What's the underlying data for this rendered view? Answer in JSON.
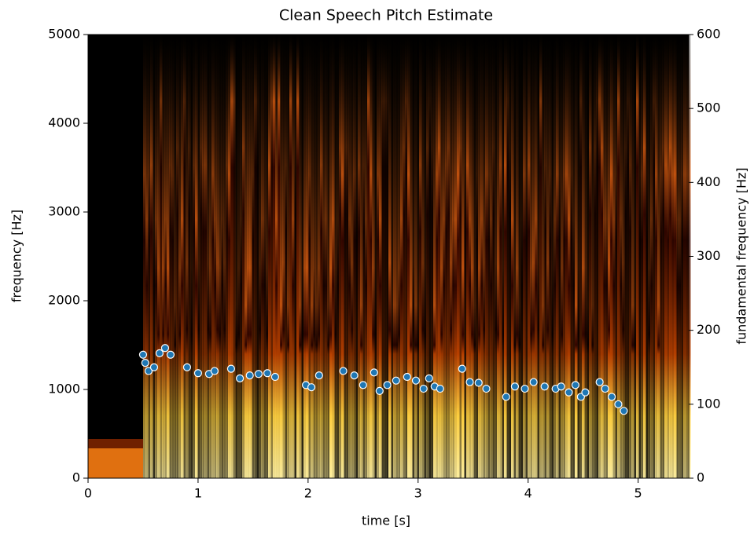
{
  "chart_data": {
    "type": "scatter",
    "title": "Clean Speech Pitch Estimate",
    "xlabel": "time [s]",
    "ylabel": "frequency [Hz]",
    "y2label": "fundamental frequency [Hz]",
    "xlim": [
      0,
      5.46
    ],
    "xticks": [
      0,
      1,
      2,
      3,
      4,
      5
    ],
    "ylim": [
      0,
      5000
    ],
    "yticks": [
      0,
      1000,
      2000,
      3000,
      4000,
      5000
    ],
    "y2lim": [
      0,
      600
    ],
    "y2ticks": [
      0,
      100,
      200,
      300,
      400,
      500,
      600
    ],
    "series": [
      {
        "color": "#1f77b4",
        "axis": "y2",
        "x": [
          0.5,
          0.52,
          0.55,
          0.6,
          0.65,
          0.7,
          0.75,
          0.9,
          1.0,
          1.1,
          1.15,
          1.3,
          1.38,
          1.47,
          1.55,
          1.63,
          1.7,
          1.98,
          2.03,
          2.1,
          2.32,
          2.42,
          2.5,
          2.6,
          2.65,
          2.72,
          2.8,
          2.9,
          2.98,
          3.05,
          3.1,
          3.15,
          3.2,
          3.4,
          3.47,
          3.55,
          3.62,
          3.8,
          3.88,
          3.97,
          4.05,
          4.15,
          4.25,
          4.3,
          4.37,
          4.43,
          4.48,
          4.52,
          4.65,
          4.7,
          4.76,
          4.82,
          4.87
        ],
        "values": [
          167,
          156,
          145,
          150,
          169,
          176,
          167,
          150,
          142,
          141,
          145,
          148,
          135,
          139,
          141,
          142,
          137,
          126,
          123,
          139,
          145,
          139,
          126,
          143,
          118,
          126,
          132,
          137,
          132,
          121,
          135,
          124,
          121,
          148,
          130,
          129,
          121,
          110,
          124,
          121,
          130,
          124,
          121,
          124,
          116,
          126,
          110,
          116,
          130,
          121,
          110,
          100,
          91
        ]
      }
    ]
  }
}
